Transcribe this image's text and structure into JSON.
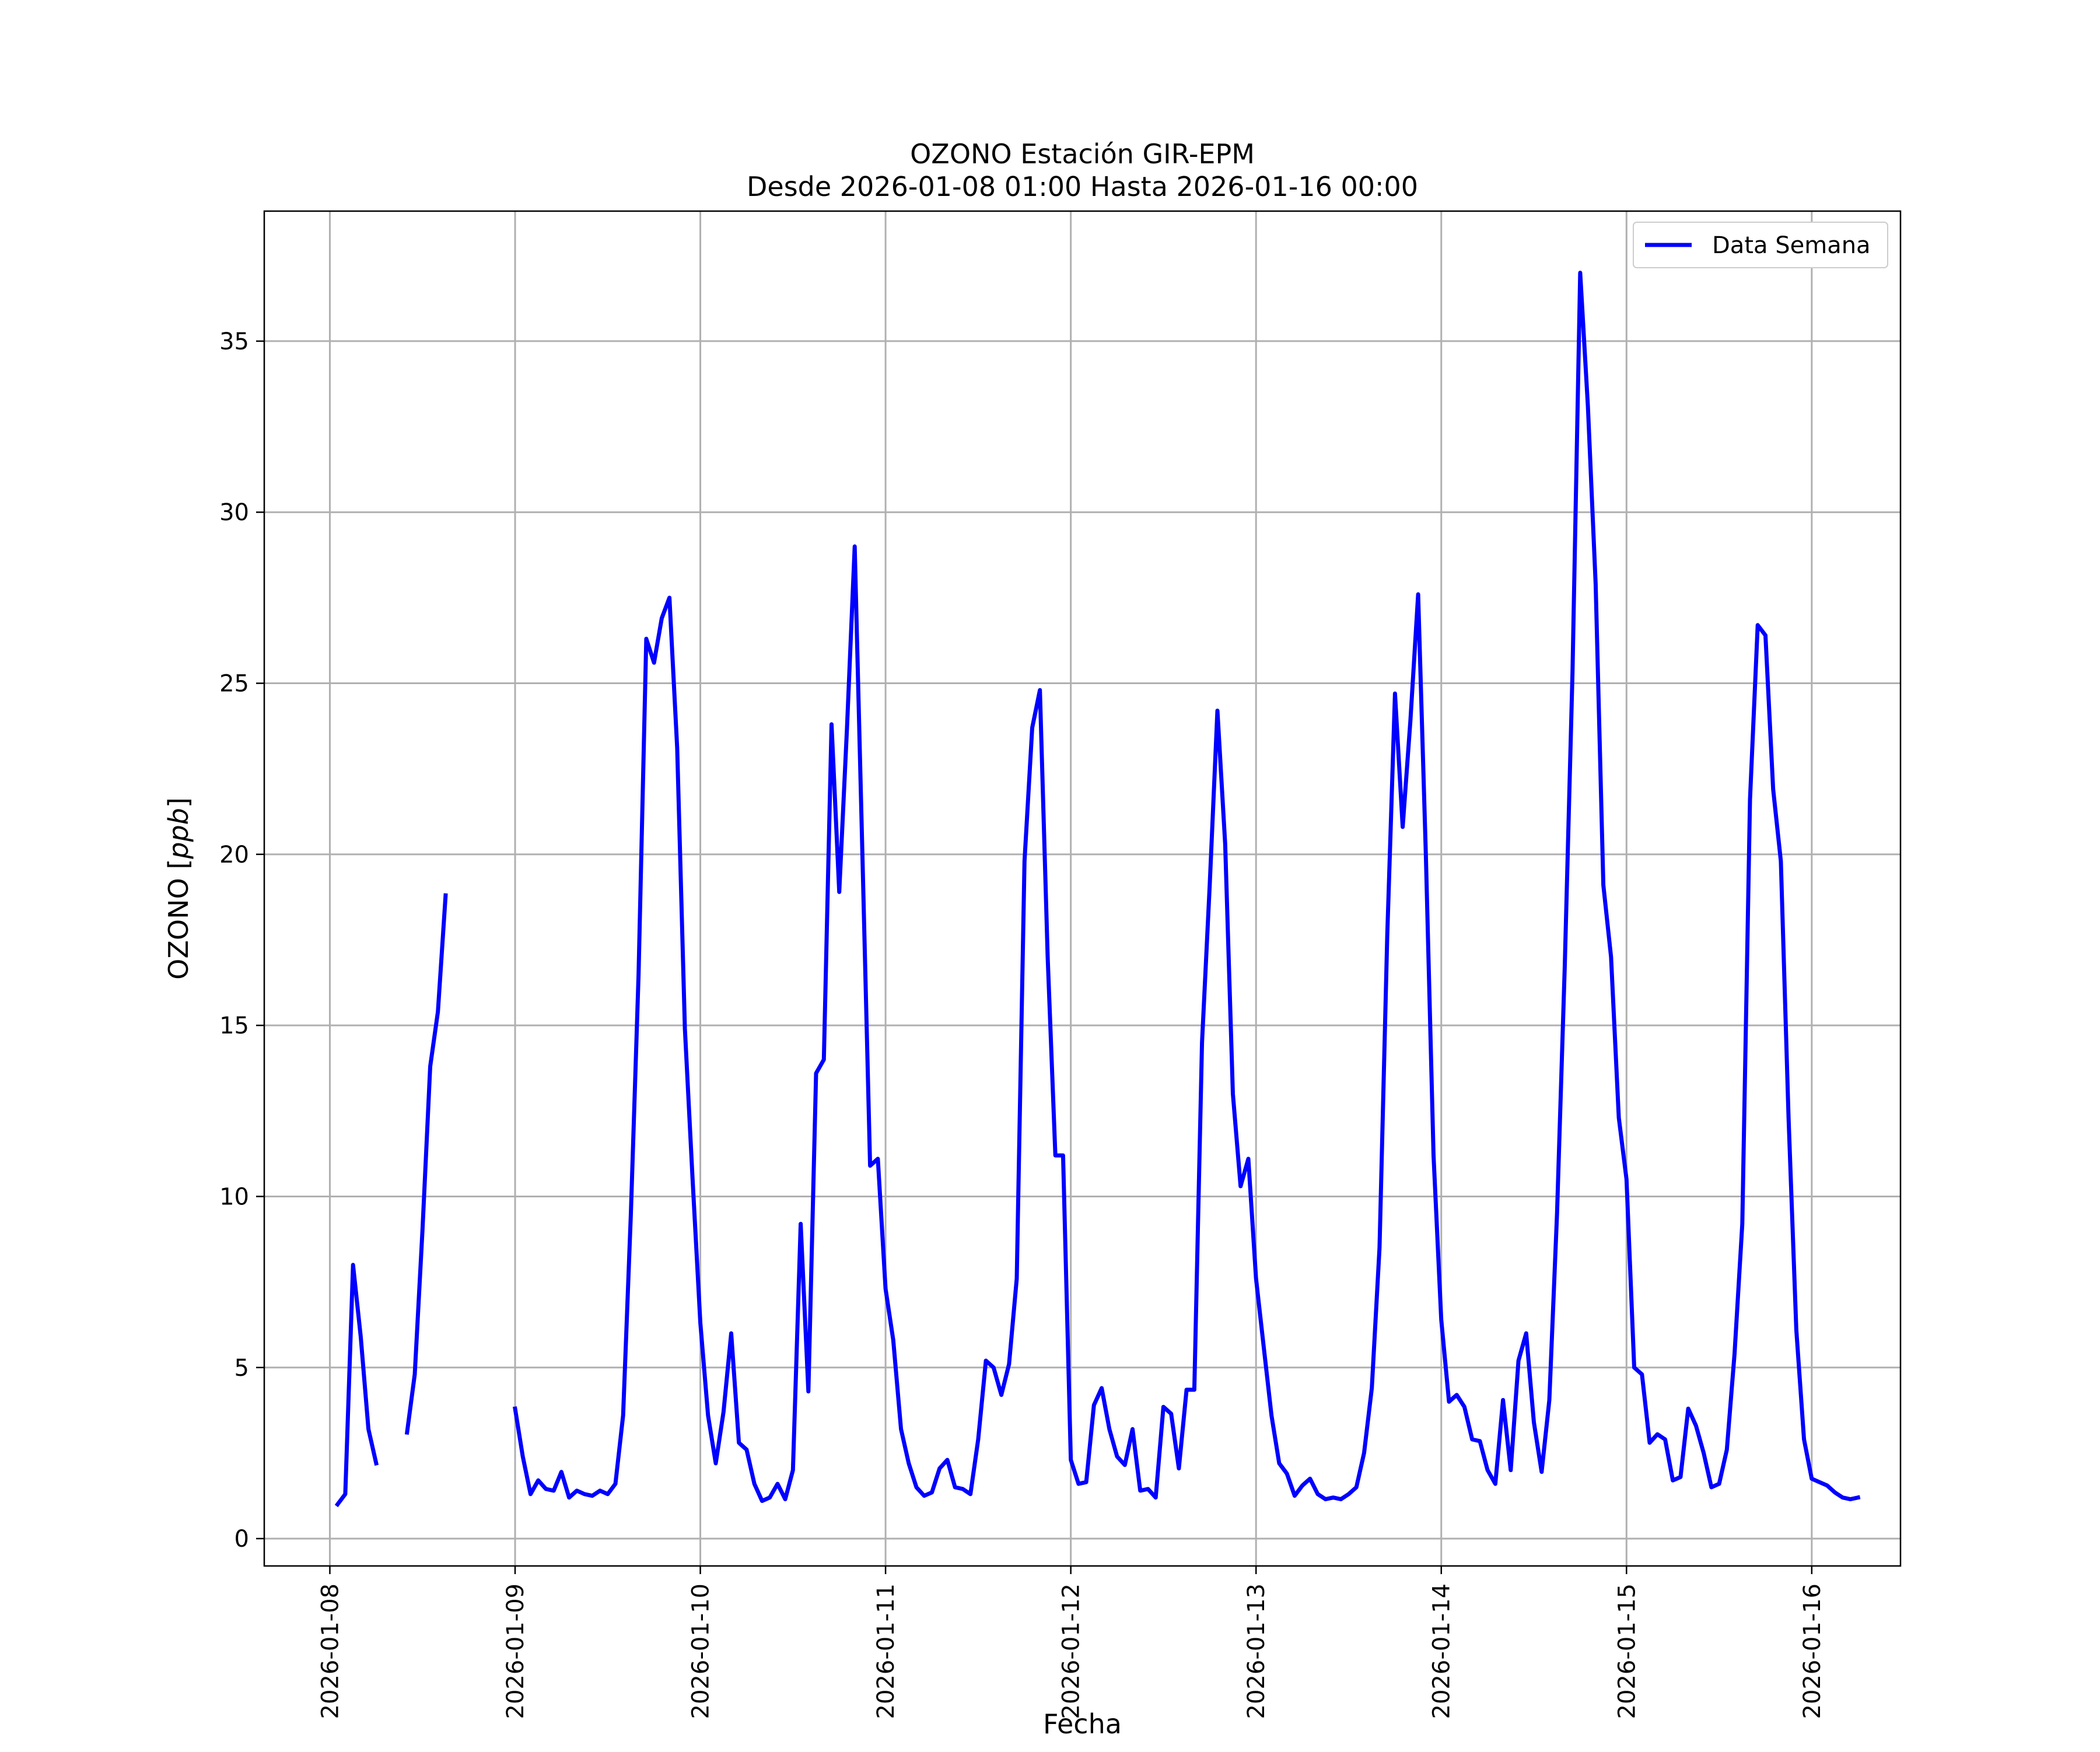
{
  "chart_data": {
    "type": "line",
    "title": "OZONO Estación GIR-EPM",
    "subtitle": "Desde 2026-01-08 01:00 Hasta 2026-01-16 00:00",
    "xlabel": "Fecha",
    "ylabel": "OZONO [ppb]",
    "xlim": [
      "2026-01-07 15:30",
      "2026-01-16 11:30"
    ],
    "ylim": [
      -0.8,
      38.8
    ],
    "x_ticks": [
      "2026-01-08",
      "2026-01-09",
      "2026-01-10",
      "2026-01-11",
      "2026-01-12",
      "2026-01-13",
      "2026-01-14",
      "2026-01-15",
      "2026-01-16"
    ],
    "y_ticks": [
      0,
      5,
      10,
      15,
      20,
      25,
      30,
      35
    ],
    "grid": true,
    "legend_position": "top-right",
    "colors": {
      "line": "#0000ff",
      "grid": "#b0b0b0",
      "axes": "#000000"
    },
    "series": [
      {
        "name": "Data Semana",
        "x_start": "2026-01-08 01:00",
        "x_step": "1 hour",
        "values": [
          1.0,
          1.3,
          8.0,
          5.9,
          3.2,
          2.2,
          null,
          null,
          null,
          3.1,
          4.8,
          9.0,
          13.8,
          15.4,
          18.8,
          null,
          null,
          null,
          null,
          null,
          null,
          null,
          null,
          3.8,
          2.4,
          1.3,
          1.7,
          1.45,
          1.4,
          1.95,
          1.2,
          1.4,
          1.3,
          1.25,
          1.4,
          1.3,
          1.6,
          3.6,
          9.5,
          16.5,
          26.3,
          25.6,
          26.9,
          27.5,
          23.1,
          14.9,
          10.5,
          6.3,
          3.6,
          2.2,
          3.7,
          6.0,
          2.8,
          2.6,
          1.6,
          1.1,
          1.2,
          1.6,
          1.15,
          2.0,
          9.2,
          4.3,
          13.6,
          14.0,
          23.8,
          18.9,
          23.7,
          29.0,
          20.0,
          10.9,
          11.1,
          7.3,
          5.8,
          3.2,
          2.2,
          1.5,
          1.25,
          1.35,
          2.05,
          2.3,
          1.5,
          1.45,
          1.3,
          2.9,
          5.2,
          5.0,
          4.2,
          5.1,
          7.6,
          19.8,
          23.7,
          24.8,
          17.0,
          11.2,
          11.2,
          2.3,
          1.6,
          1.65,
          3.9,
          4.4,
          3.2,
          2.4,
          2.15,
          3.2,
          1.4,
          1.45,
          1.2,
          3.85,
          3.65,
          2.05,
          4.35,
          4.35,
          14.5,
          19.1,
          24.2,
          20.3,
          13.0,
          10.3,
          11.1,
          7.6,
          5.6,
          3.6,
          2.2,
          1.9,
          1.25,
          1.55,
          1.75,
          1.3,
          1.15,
          1.2,
          1.15,
          1.3,
          1.5,
          2.5,
          4.4,
          8.5,
          17.6,
          24.7,
          20.8,
          23.9,
          27.6,
          20.0,
          11.2,
          6.4,
          4.0,
          4.2,
          3.85,
          2.9,
          2.85,
          2.0,
          1.6,
          4.05,
          2.0,
          5.2,
          6.0,
          3.4,
          1.95,
          4.05,
          9.5,
          16.7,
          25.3,
          37.0,
          33.1,
          27.9,
          19.1,
          17.0,
          12.3,
          10.5,
          5.0,
          4.8,
          2.8,
          3.05,
          2.9,
          1.7,
          1.8,
          3.8,
          3.3,
          2.5,
          1.5,
          1.6,
          2.6,
          5.4,
          9.2,
          21.6,
          26.7,
          26.4,
          21.9,
          19.8,
          12.3,
          6.1,
          2.9,
          1.75,
          1.65,
          1.55,
          1.35,
          1.2,
          1.15,
          1.2
        ]
      }
    ]
  }
}
